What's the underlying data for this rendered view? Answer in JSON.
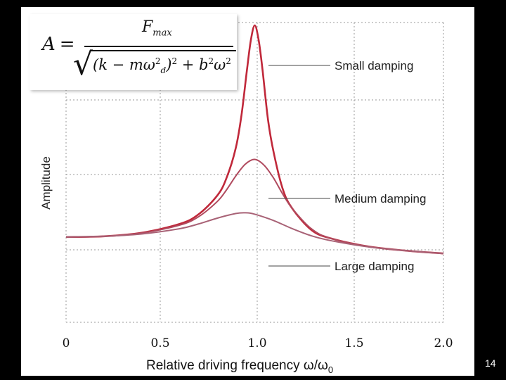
{
  "chart_data": {
    "type": "line",
    "xlabel": "Relative driving frequency ω/ω",
    "xlabel_sub": "0",
    "ylabel": "Amplitude",
    "xlim": [
      0,
      2.0
    ],
    "x_ticks": [
      "0",
      "0.5",
      "1.0",
      "1.5",
      "2.0"
    ],
    "grid": true,
    "series": [
      {
        "name": "Small damping",
        "color": "#c0283a",
        "x": [
          0,
          0.2,
          0.4,
          0.6,
          0.7,
          0.8,
          0.85,
          0.9,
          0.93,
          0.96,
          0.98,
          1.0,
          1.02,
          1.04,
          1.07,
          1.1,
          1.15,
          1.2,
          1.3,
          1.4,
          1.6,
          1.8,
          2.0
        ],
        "y": [
          1.0,
          1.03,
          1.18,
          1.55,
          1.95,
          2.75,
          3.5,
          4.8,
          6.2,
          8.2,
          9.4,
          10.0,
          9.4,
          8.2,
          6.0,
          4.6,
          3.0,
          2.2,
          1.3,
          0.95,
          0.6,
          0.42,
          0.3
        ]
      },
      {
        "name": "Medium damping",
        "color": "#b04a5e",
        "x": [
          0,
          0.2,
          0.4,
          0.6,
          0.7,
          0.8,
          0.85,
          0.9,
          0.95,
          1.0,
          1.05,
          1.1,
          1.15,
          1.2,
          1.3,
          1.4,
          1.6,
          1.8,
          2.0
        ],
        "y": [
          1.0,
          1.03,
          1.17,
          1.5,
          1.85,
          2.5,
          3.0,
          3.6,
          4.1,
          4.3,
          4.05,
          3.5,
          2.8,
          2.2,
          1.35,
          0.95,
          0.6,
          0.42,
          0.3
        ]
      },
      {
        "name": "Large damping",
        "color": "#a86276",
        "x": [
          0,
          0.2,
          0.4,
          0.6,
          0.7,
          0.8,
          0.9,
          0.95,
          1.0,
          1.1,
          1.2,
          1.3,
          1.4,
          1.6,
          1.8,
          2.0
        ],
        "y": [
          1.0,
          1.03,
          1.13,
          1.35,
          1.55,
          1.8,
          2.0,
          2.03,
          1.97,
          1.7,
          1.35,
          1.05,
          0.85,
          0.58,
          0.42,
          0.3
        ]
      }
    ],
    "annotations": [
      "Small damping",
      "Medium damping",
      "Large damping"
    ]
  },
  "formula": {
    "lhs": "A",
    "eq": "=",
    "numerator": "F",
    "numerator_sub": "max",
    "den_open": "(k − mω",
    "den_sup1": "2",
    "den_sub1": "d",
    "den_mid": ")",
    "den_sup2": "2",
    "den_plus": " + b",
    "den_sup3": "2",
    "den_omega": "ω",
    "den_sup4": "2"
  },
  "page_number": "14"
}
